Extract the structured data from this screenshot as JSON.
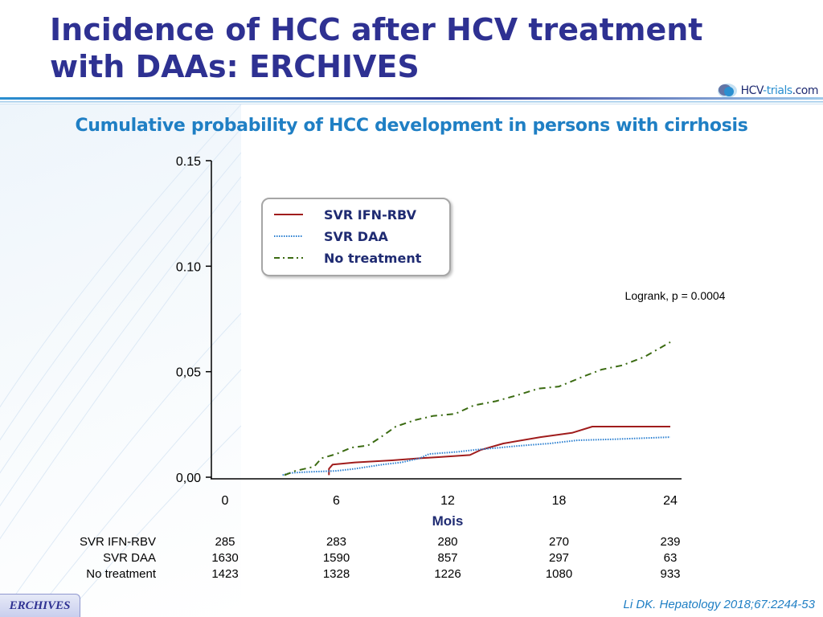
{
  "slide": {
    "title_line1": "Incidence of HCC after HCV treatment",
    "title_line2": "with DAAs: ERCHIVES",
    "subtitle": "Cumulative probability of HCC development in persons with cirrhosis",
    "tag": "ERCHIVES",
    "reference": "Li DK. Hepatology 2018;67:2244-53",
    "logo": {
      "part1": "HCV",
      "part2": "-",
      "part3": "trials",
      "part4": ".com"
    }
  },
  "colors": {
    "title": "#2e3192",
    "subtitle": "#1f7fc4",
    "svr_ifn_rbv": "#a01c1c",
    "svr_daa": "#2a7fd0",
    "no_treatment": "#3b6b12"
  },
  "chart_data": {
    "type": "line",
    "title": "Cumulative probability of HCC development in persons with cirrhosis",
    "xlabel": "Mois",
    "ylabel": "",
    "xlim": [
      0,
      24
    ],
    "ylim": [
      0,
      0.15
    ],
    "x_ticks": [
      0,
      6,
      12,
      18,
      24
    ],
    "x_tick_labels": [
      "0",
      "6",
      "12",
      "18",
      "24"
    ],
    "y_ticks": [
      0,
      0.05,
      0.1,
      0.15
    ],
    "y_tick_labels": [
      "0,00",
      "0,05",
      "0.10",
      "0.15"
    ],
    "annotation": "Logrank, p = 0.0004",
    "legend_position": "top-center",
    "series": [
      {
        "name": "SVR IFN-RBV",
        "style": "solid",
        "points": [
          [
            5.6,
            0.001
          ],
          [
            5.6,
            0.004
          ],
          [
            5.8,
            0.006
          ],
          [
            7,
            0.007
          ],
          [
            9,
            0.008
          ],
          [
            10.5,
            0.009
          ],
          [
            11.5,
            0.0095
          ],
          [
            13.2,
            0.0105
          ],
          [
            13.8,
            0.013
          ],
          [
            15,
            0.016
          ],
          [
            17,
            0.019
          ],
          [
            18.7,
            0.021
          ],
          [
            19.8,
            0.024
          ],
          [
            24,
            0.024
          ]
        ]
      },
      {
        "name": "SVR DAA",
        "style": "dotted",
        "points": [
          [
            3.1,
            0.001
          ],
          [
            3.5,
            0.002
          ],
          [
            4.5,
            0.0025
          ],
          [
            6,
            0.003
          ],
          [
            7,
            0.004
          ],
          [
            8.5,
            0.006
          ],
          [
            9.5,
            0.007
          ],
          [
            10.5,
            0.009
          ],
          [
            11,
            0.011
          ],
          [
            12.5,
            0.012
          ],
          [
            13.5,
            0.013
          ],
          [
            14.8,
            0.014
          ],
          [
            16,
            0.015
          ],
          [
            17.5,
            0.016
          ],
          [
            19,
            0.0175
          ],
          [
            21,
            0.018
          ],
          [
            24,
            0.019
          ]
        ]
      },
      {
        "name": "No treatment",
        "style": "dashdot",
        "points": [
          [
            3.2,
            0.001
          ],
          [
            3.8,
            0.003
          ],
          [
            4.8,
            0.005
          ],
          [
            5.2,
            0.009
          ],
          [
            6,
            0.011
          ],
          [
            6.8,
            0.014
          ],
          [
            7.7,
            0.015
          ],
          [
            8.4,
            0.019
          ],
          [
            9.2,
            0.024
          ],
          [
            10.2,
            0.027
          ],
          [
            11.2,
            0.029
          ],
          [
            12.4,
            0.03
          ],
          [
            13.4,
            0.034
          ],
          [
            14.6,
            0.036
          ],
          [
            15.8,
            0.039
          ],
          [
            16.9,
            0.042
          ],
          [
            18,
            0.043
          ],
          [
            19.4,
            0.048
          ],
          [
            20.3,
            0.051
          ],
          [
            21.4,
            0.053
          ],
          [
            22.6,
            0.057
          ],
          [
            23.2,
            0.06
          ],
          [
            24,
            0.064
          ]
        ]
      }
    ]
  },
  "risk_table": {
    "times": [
      "0",
      "6",
      "12",
      "18",
      "24"
    ],
    "rows": [
      {
        "label": "SVR IFN-RBV",
        "values": [
          "285",
          "283",
          "280",
          "270",
          "239"
        ]
      },
      {
        "label": "SVR DAA",
        "values": [
          "1630",
          "1590",
          "857",
          "297",
          "63"
        ]
      },
      {
        "label": "No treatment",
        "values": [
          "1423",
          "1328",
          "1226",
          "1080",
          "933"
        ]
      }
    ]
  }
}
